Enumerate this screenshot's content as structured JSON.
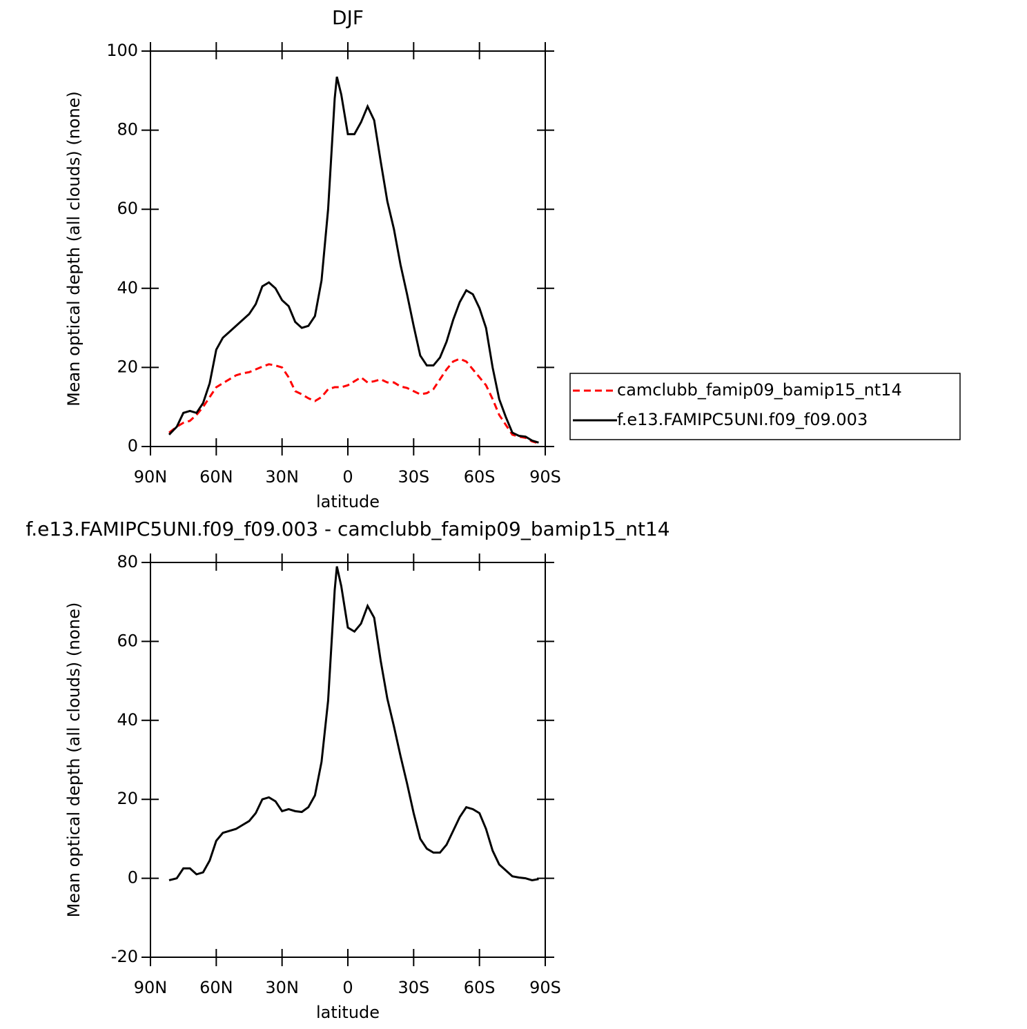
{
  "chart_data": [
    {
      "type": "line",
      "title": "DJF",
      "x_label": "latitude",
      "y_label": "Mean optical depth (all clouds) (none)",
      "x": [
        81.5,
        78,
        75,
        72,
        69,
        66,
        63,
        60,
        57,
        54,
        51,
        48,
        45,
        42,
        39,
        36,
        33,
        30,
        27,
        24,
        21,
        18,
        15,
        12,
        9,
        6,
        5,
        3,
        0,
        -3,
        -6,
        -9,
        -12,
        -15,
        -18,
        -21,
        -24,
        -27,
        -30,
        -33,
        -36,
        -39,
        -42,
        -45,
        -48,
        -51,
        -54,
        -57,
        -60,
        -63,
        -66,
        -69,
        -72,
        -75,
        -78,
        -81,
        -84,
        -87
      ],
      "series": [
        {
          "name": "camclubb_famip09_bamip15_nt14",
          "color": "#ff0000",
          "line_style": "dashed",
          "values": [
            3.5,
            5,
            6,
            6.5,
            8,
            10,
            12.5,
            15,
            16,
            17,
            18,
            18.5,
            18.8,
            19.5,
            20.2,
            20.8,
            20.5,
            20,
            17.5,
            14,
            13.2,
            12.2,
            11.5,
            12.5,
            14.5,
            15,
            15,
            15,
            15.5,
            16.5,
            17.5,
            16.2,
            16.5,
            17,
            16.2,
            16.2,
            15.2,
            14.8,
            14,
            13.2,
            13.5,
            14.5,
            17,
            19.5,
            21.5,
            22.2,
            21.5,
            19.5,
            17.5,
            15.5,
            12,
            8,
            5.5,
            3,
            2.5,
            2.2,
            1.3,
            0.8
          ]
        },
        {
          "name": "f.e13.FAMIPC5UNI.f09_f09.003",
          "color": "#000000",
          "line_style": "solid",
          "values": [
            3,
            5,
            8.5,
            9,
            8.5,
            11,
            16,
            24.5,
            27.5,
            29,
            30.5,
            32,
            33.5,
            36,
            40.5,
            41.5,
            40,
            37,
            35.5,
            31.5,
            30,
            30.5,
            33,
            42,
            60,
            88,
            93.5,
            89,
            79,
            79,
            82,
            86,
            82.5,
            72,
            62,
            55,
            46,
            38.5,
            30.5,
            23,
            20.5,
            20.5,
            22.5,
            26.5,
            32,
            36.5,
            39.5,
            38.5,
            35,
            30,
            20,
            12,
            7.5,
            3.5,
            2.7,
            2.5,
            1.5,
            1
          ]
        }
      ],
      "xlim": [
        90,
        -90
      ],
      "xticks": [
        {
          "value": 90,
          "label": "90N"
        },
        {
          "value": 60,
          "label": "60N"
        },
        {
          "value": 30,
          "label": "30N"
        },
        0,
        {
          "value": -30,
          "label": "30S"
        },
        {
          "value": -60,
          "label": "60S"
        },
        {
          "value": -90,
          "label": "90S"
        }
      ],
      "ylim": [
        0,
        100
      ],
      "yticks": [
        0,
        20,
        40,
        60,
        80,
        100
      ],
      "legend": "right"
    },
    {
      "type": "line",
      "title": "f.e13.FAMIPC5UNI.f09_f09.003 - camclubb_famip09_bamip15_nt14",
      "x_label": "latitude",
      "y_label": "Mean optical depth (all clouds) (none)",
      "x": [
        81.5,
        78,
        75,
        72,
        69,
        66,
        63,
        60,
        57,
        54,
        51,
        48,
        45,
        42,
        39,
        36,
        33,
        30,
        27,
        24,
        21,
        18,
        15,
        12,
        9,
        6,
        5,
        3,
        0,
        -3,
        -6,
        -9,
        -12,
        -15,
        -18,
        -21,
        -24,
        -27,
        -30,
        -33,
        -36,
        -39,
        -42,
        -45,
        -48,
        -51,
        -54,
        -57,
        -60,
        -63,
        -66,
        -69,
        -72,
        -75,
        -78,
        -81,
        -84,
        -87
      ],
      "color": "#000000",
      "values": [
        -0.5,
        0,
        2.5,
        2.5,
        1,
        1.5,
        4.5,
        9.5,
        11.5,
        12,
        12.5,
        13.5,
        14.5,
        16.5,
        20,
        20.5,
        19.5,
        17,
        17.5,
        17,
        16.8,
        18,
        21,
        29.5,
        45,
        73,
        79,
        74,
        63.5,
        62.5,
        64.5,
        69,
        66,
        55,
        45.5,
        38.5,
        31,
        24,
        16.5,
        10,
        7.5,
        6.5,
        6.5,
        8.5,
        12,
        15.5,
        18,
        17.5,
        16.5,
        12.5,
        7,
        3.5,
        2,
        0.5,
        0.2,
        0,
        -0.5,
        -0.2
      ],
      "xlim": [
        90,
        -90
      ],
      "xticks": [
        {
          "value": 90,
          "label": "90N"
        },
        {
          "value": 60,
          "label": "60N"
        },
        {
          "value": 30,
          "label": "30N"
        },
        0,
        {
          "value": -30,
          "label": "30S"
        },
        {
          "value": -60,
          "label": "60S"
        },
        {
          "value": -90,
          "label": "90S"
        }
      ],
      "ylim": [
        -20,
        80
      ],
      "yticks": [
        -20,
        0,
        20,
        40,
        60,
        80
      ]
    }
  ]
}
